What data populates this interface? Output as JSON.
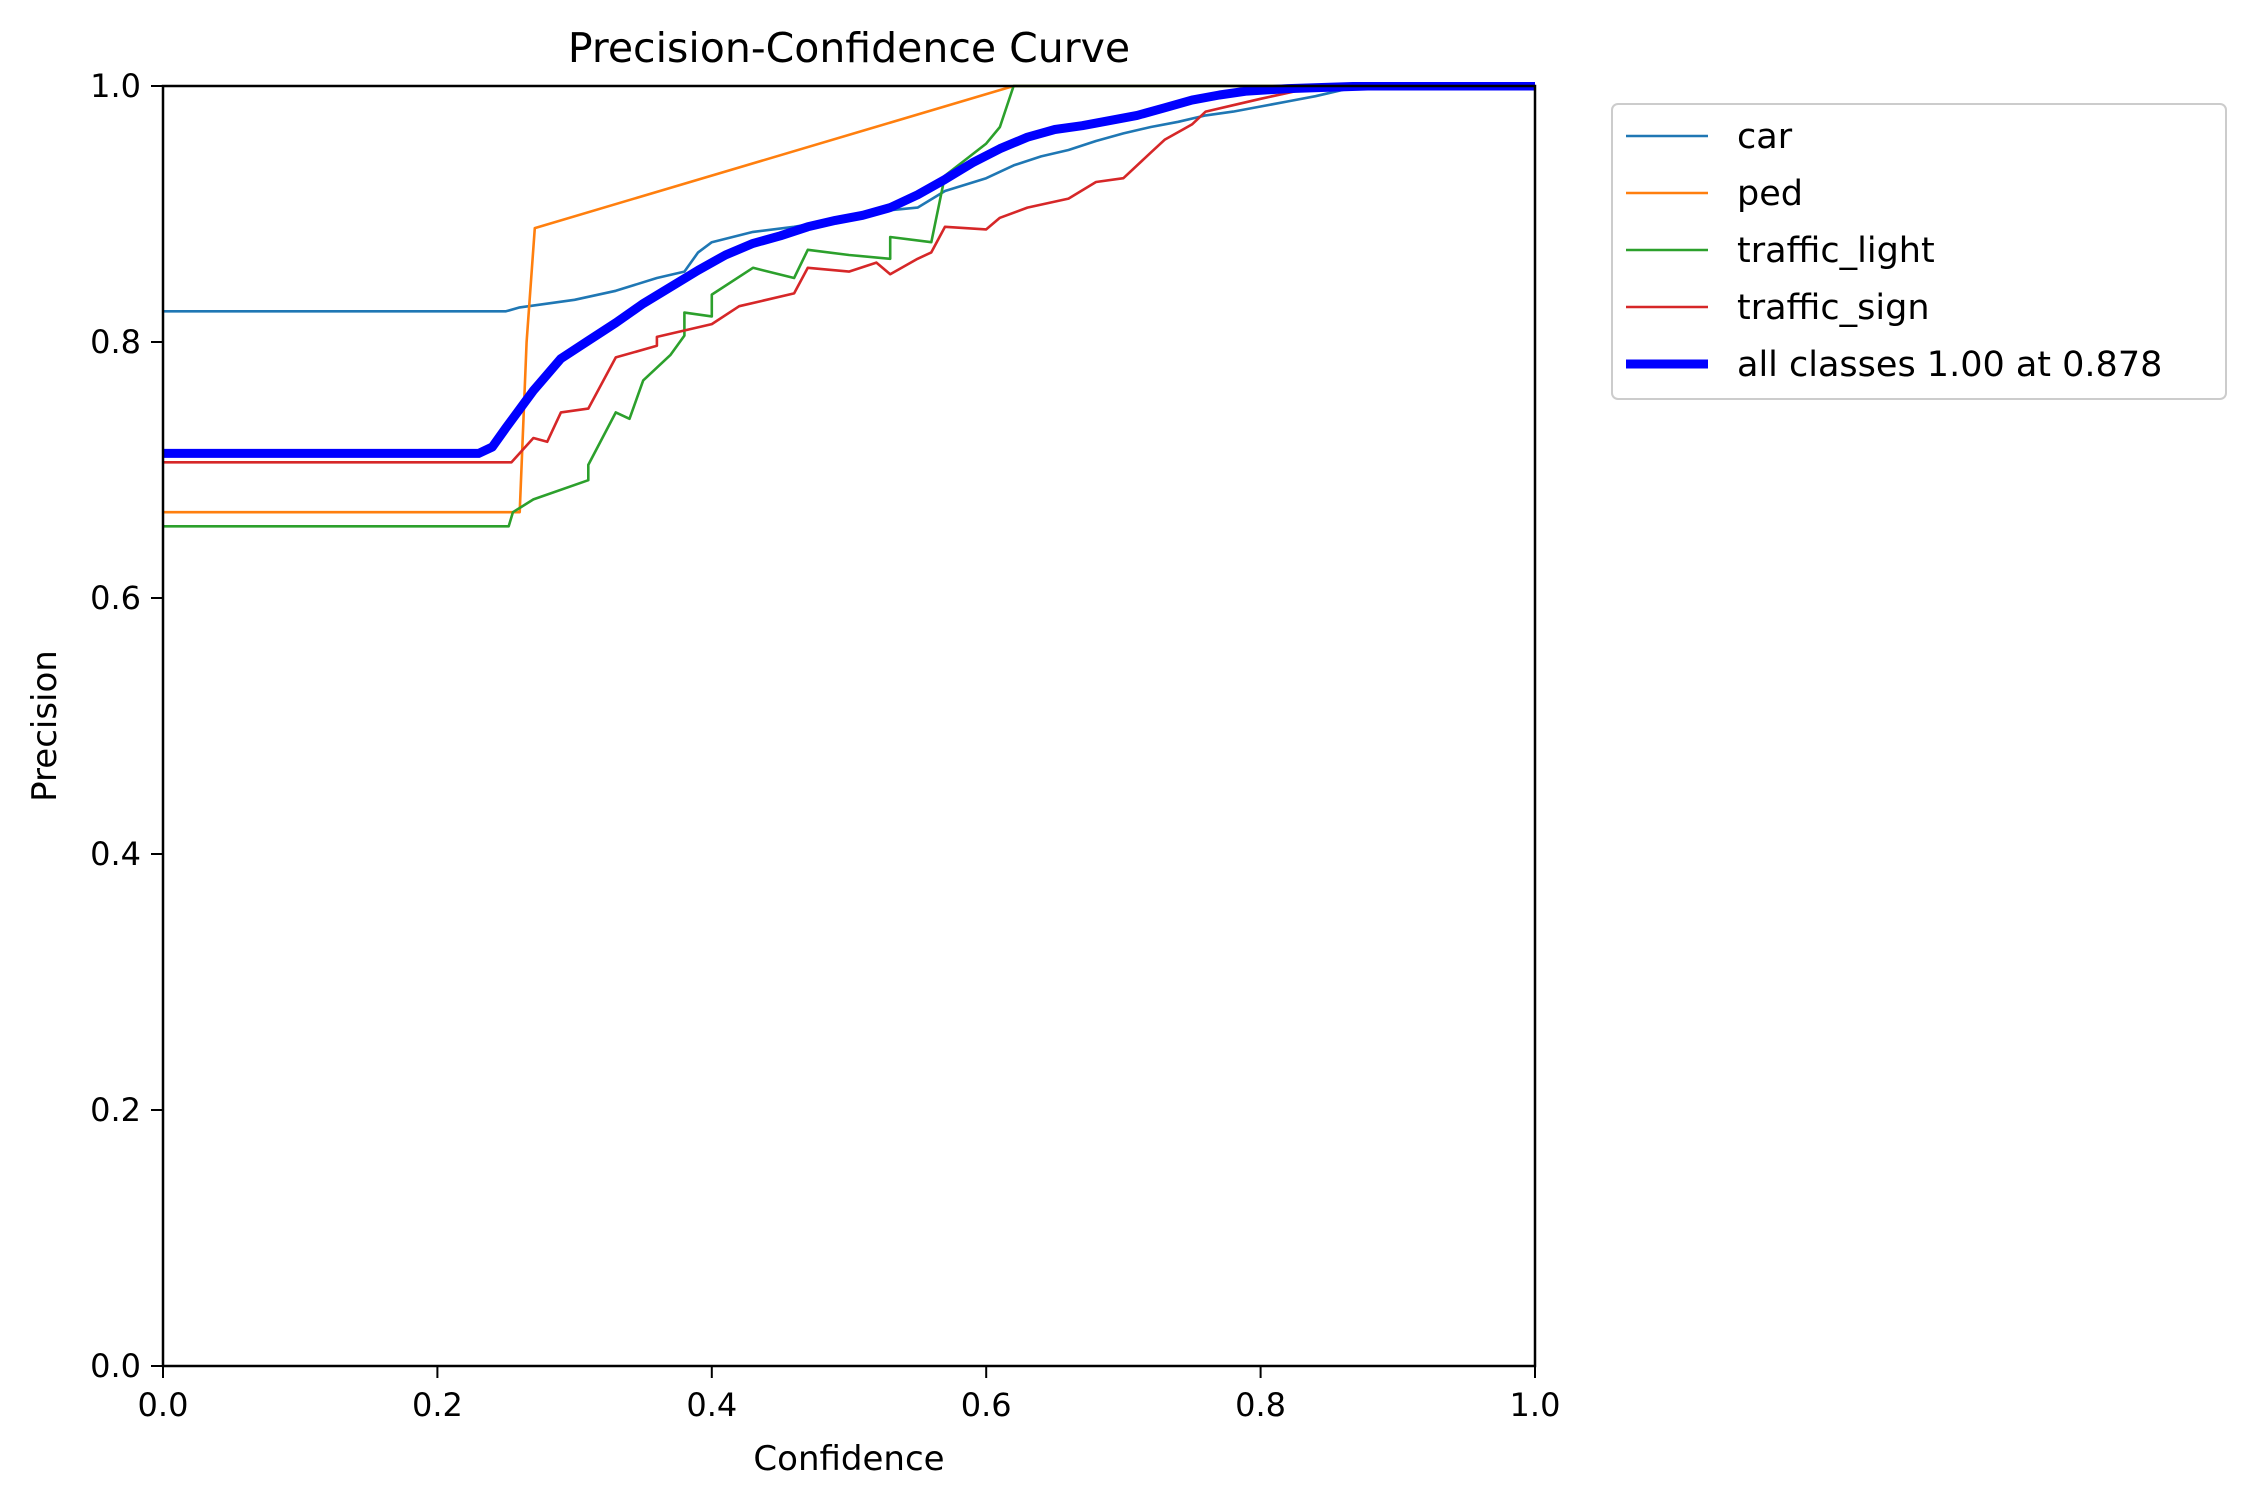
{
  "chart_data": {
    "type": "line",
    "title": "Precision-Confidence Curve",
    "xlabel": "Confidence",
    "ylabel": "Precision",
    "xlim": [
      0.0,
      1.0
    ],
    "ylim": [
      0.0,
      1.0
    ],
    "xticks": [
      0.0,
      0.2,
      0.4,
      0.6,
      0.8,
      1.0
    ],
    "yticks": [
      0.0,
      0.2,
      0.4,
      0.6,
      0.8,
      1.0
    ],
    "xtick_labels": [
      "0.0",
      "0.2",
      "0.4",
      "0.6",
      "0.8",
      "1.0"
    ],
    "ytick_labels": [
      "0.0",
      "0.2",
      "0.4",
      "0.6",
      "0.8",
      "1.0"
    ],
    "grid": false,
    "legend_position": "outside-top-right",
    "series": [
      {
        "name": "car",
        "color": "#1f77b4",
        "emphasis": false,
        "points": [
          [
            0.0,
            0.824
          ],
          [
            0.25,
            0.824
          ],
          [
            0.26,
            0.827
          ],
          [
            0.3,
            0.833
          ],
          [
            0.33,
            0.84
          ],
          [
            0.36,
            0.85
          ],
          [
            0.38,
            0.855
          ],
          [
            0.39,
            0.87
          ],
          [
            0.4,
            0.878
          ],
          [
            0.43,
            0.886
          ],
          [
            0.46,
            0.89
          ],
          [
            0.5,
            0.897
          ],
          [
            0.53,
            0.903
          ],
          [
            0.55,
            0.905
          ],
          [
            0.57,
            0.918
          ],
          [
            0.6,
            0.928
          ],
          [
            0.62,
            0.938
          ],
          [
            0.64,
            0.945
          ],
          [
            0.66,
            0.95
          ],
          [
            0.68,
            0.957
          ],
          [
            0.7,
            0.963
          ],
          [
            0.72,
            0.968
          ],
          [
            0.74,
            0.972
          ],
          [
            0.76,
            0.977
          ],
          [
            0.78,
            0.98
          ],
          [
            0.8,
            0.984
          ],
          [
            0.82,
            0.988
          ],
          [
            0.84,
            0.992
          ],
          [
            0.86,
            0.997
          ],
          [
            0.88,
            1.0
          ],
          [
            1.0,
            1.0
          ]
        ]
      },
      {
        "name": "ped",
        "color": "#ff7f0e",
        "emphasis": false,
        "points": [
          [
            0.0,
            0.667
          ],
          [
            0.26,
            0.667
          ],
          [
            0.265,
            0.8
          ],
          [
            0.271,
            0.889
          ],
          [
            0.62,
            1.0
          ],
          [
            1.0,
            1.0
          ]
        ]
      },
      {
        "name": "traffic_light",
        "color": "#2ca02c",
        "emphasis": false,
        "points": [
          [
            0.0,
            0.656
          ],
          [
            0.252,
            0.656
          ],
          [
            0.255,
            0.667
          ],
          [
            0.27,
            0.677
          ],
          [
            0.31,
            0.692
          ],
          [
            0.31,
            0.704
          ],
          [
            0.33,
            0.745
          ],
          [
            0.34,
            0.74
          ],
          [
            0.35,
            0.77
          ],
          [
            0.37,
            0.79
          ],
          [
            0.38,
            0.805
          ],
          [
            0.38,
            0.823
          ],
          [
            0.4,
            0.82
          ],
          [
            0.4,
            0.837
          ],
          [
            0.43,
            0.858
          ],
          [
            0.46,
            0.85
          ],
          [
            0.47,
            0.872
          ],
          [
            0.5,
            0.868
          ],
          [
            0.53,
            0.865
          ],
          [
            0.53,
            0.882
          ],
          [
            0.56,
            0.878
          ],
          [
            0.57,
            0.93
          ],
          [
            0.6,
            0.955
          ],
          [
            0.61,
            0.968
          ],
          [
            0.62,
            1.0
          ],
          [
            1.0,
            1.0
          ]
        ]
      },
      {
        "name": "traffic_sign",
        "color": "#d62728",
        "emphasis": false,
        "points": [
          [
            0.0,
            0.706
          ],
          [
            0.254,
            0.706
          ],
          [
            0.27,
            0.725
          ],
          [
            0.28,
            0.722
          ],
          [
            0.29,
            0.745
          ],
          [
            0.31,
            0.748
          ],
          [
            0.33,
            0.788
          ],
          [
            0.36,
            0.797
          ],
          [
            0.36,
            0.804
          ],
          [
            0.4,
            0.814
          ],
          [
            0.42,
            0.828
          ],
          [
            0.46,
            0.838
          ],
          [
            0.47,
            0.858
          ],
          [
            0.5,
            0.855
          ],
          [
            0.52,
            0.862
          ],
          [
            0.53,
            0.853
          ],
          [
            0.55,
            0.865
          ],
          [
            0.56,
            0.87
          ],
          [
            0.57,
            0.89
          ],
          [
            0.6,
            0.888
          ],
          [
            0.61,
            0.897
          ],
          [
            0.63,
            0.905
          ],
          [
            0.66,
            0.912
          ],
          [
            0.68,
            0.925
          ],
          [
            0.7,
            0.928
          ],
          [
            0.72,
            0.948
          ],
          [
            0.73,
            0.958
          ],
          [
            0.75,
            0.97
          ],
          [
            0.76,
            0.98
          ],
          [
            0.78,
            0.985
          ],
          [
            0.8,
            0.99
          ],
          [
            0.83,
            0.997
          ],
          [
            0.86,
            1.0
          ],
          [
            1.0,
            1.0
          ]
        ]
      },
      {
        "name": "all classes 1.00 at 0.878",
        "color": "#0000ff",
        "emphasis": true,
        "points": [
          [
            0.0,
            0.713
          ],
          [
            0.2,
            0.713
          ],
          [
            0.23,
            0.713
          ],
          [
            0.24,
            0.718
          ],
          [
            0.25,
            0.733
          ],
          [
            0.27,
            0.762
          ],
          [
            0.29,
            0.787
          ],
          [
            0.31,
            0.801
          ],
          [
            0.33,
            0.815
          ],
          [
            0.35,
            0.83
          ],
          [
            0.37,
            0.843
          ],
          [
            0.39,
            0.856
          ],
          [
            0.41,
            0.868
          ],
          [
            0.43,
            0.877
          ],
          [
            0.45,
            0.883
          ],
          [
            0.47,
            0.89
          ],
          [
            0.49,
            0.895
          ],
          [
            0.51,
            0.899
          ],
          [
            0.53,
            0.905
          ],
          [
            0.55,
            0.915
          ],
          [
            0.57,
            0.927
          ],
          [
            0.59,
            0.94
          ],
          [
            0.61,
            0.951
          ],
          [
            0.63,
            0.96
          ],
          [
            0.65,
            0.966
          ],
          [
            0.67,
            0.969
          ],
          [
            0.69,
            0.973
          ],
          [
            0.71,
            0.977
          ],
          [
            0.73,
            0.983
          ],
          [
            0.75,
            0.989
          ],
          [
            0.77,
            0.993
          ],
          [
            0.79,
            0.996
          ],
          [
            0.82,
            0.998
          ],
          [
            0.85,
            0.999
          ],
          [
            0.878,
            1.0
          ],
          [
            1.0,
            1.0
          ]
        ]
      }
    ]
  }
}
